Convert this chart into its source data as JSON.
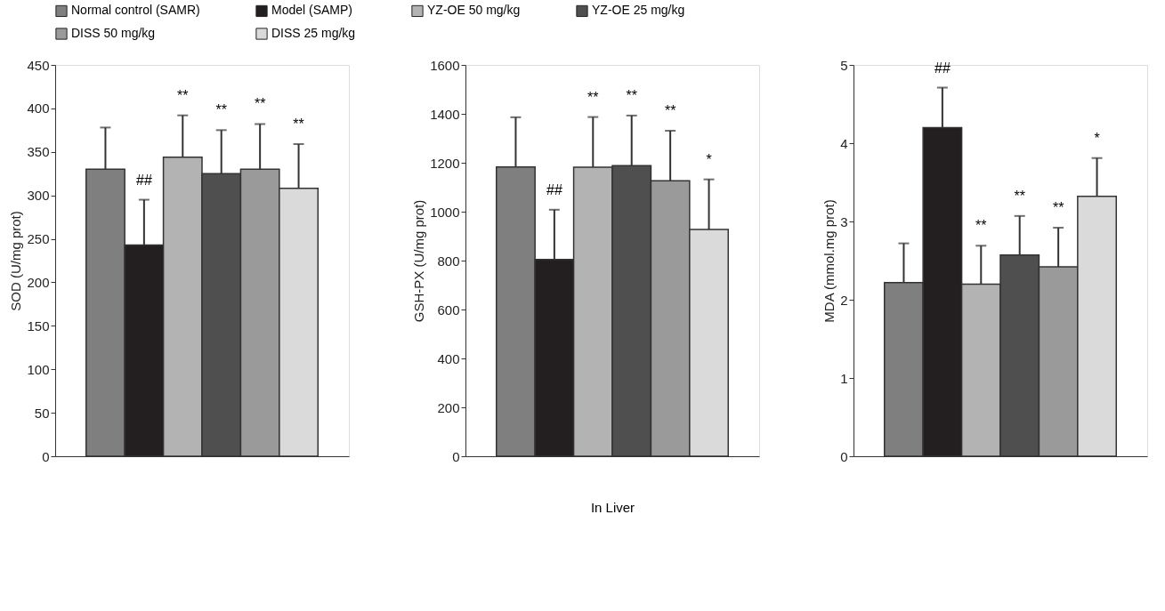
{
  "chart_data": [
    {
      "type": "bar",
      "ylabel": "SOD (U/mg prot)",
      "ylim": [
        0,
        450
      ],
      "yticks": [
        0,
        50,
        100,
        150,
        200,
        250,
        300,
        350,
        400,
        450
      ],
      "categories": [
        null
      ],
      "tick_labels": "y",
      "grid": false,
      "legend": "top",
      "series": [
        {
          "name": "Normal control (SAMR)",
          "color": "#7f7f7f",
          "values": [
            330
          ],
          "errors": [
            48
          ]
        },
        {
          "name": "Model (SAMP)",
          "color": "#231f20",
          "values": [
            243
          ],
          "errors": [
            52
          ]
        },
        {
          "name": "YZ-OE 50 mg/kg",
          "color": "#b3b3b3",
          "values": [
            344
          ],
          "errors": [
            48
          ]
        },
        {
          "name": "YZ-OE 25 mg/kg",
          "color": "#4f4f4f",
          "values": [
            325
          ],
          "errors": [
            50
          ]
        },
        {
          "name": "DISS 50 mg/kg",
          "color": "#9a9a9a",
          "values": [
            330
          ],
          "errors": [
            52
          ]
        },
        {
          "name": "DISS 25 mg/kg",
          "color": "#dadada",
          "values": [
            308
          ],
          "errors": [
            51
          ]
        }
      ],
      "annotations": [
        "##",
        "**",
        "**",
        "**",
        "**"
      ]
    },
    {
      "type": "bar",
      "xlabel": "In Liver",
      "ylabel": "GSH-PX (U/mg prot)",
      "ylim": [
        0,
        1600
      ],
      "yticks": [
        0,
        200,
        400,
        600,
        800,
        1000,
        1200,
        1400,
        1600
      ],
      "categories": [
        null
      ],
      "tick_labels": "y",
      "grid": false,
      "series": [
        {
          "name": "Normal control (SAMR)",
          "color": "#7f7f7f",
          "values": [
            1183
          ],
          "errors": [
            203
          ]
        },
        {
          "name": "Model (SAMP)",
          "color": "#231f20",
          "values": [
            805
          ],
          "errors": [
            203
          ]
        },
        {
          "name": "YZ-OE 50 mg/kg",
          "color": "#b3b3b3",
          "values": [
            1182
          ],
          "errors": [
            205
          ]
        },
        {
          "name": "YZ-OE 25 mg/kg",
          "color": "#4f4f4f",
          "values": [
            1188
          ],
          "errors": [
            205
          ]
        },
        {
          "name": "DISS 50 mg/kg",
          "color": "#9a9a9a",
          "values": [
            1126
          ],
          "errors": [
            205
          ]
        },
        {
          "name": "DISS 25 mg/kg",
          "color": "#dadada",
          "values": [
            927
          ],
          "errors": [
            205
          ]
        }
      ],
      "annotations": [
        "##",
        "**",
        "**",
        "**",
        "*"
      ]
    },
    {
      "type": "bar",
      "ylabel": "MDA (mmol.mg prot)",
      "ylim": [
        0,
        5
      ],
      "yticks": [
        0,
        1,
        2,
        3,
        4,
        5
      ],
      "categories": [
        null
      ],
      "tick_labels": "y",
      "grid": false,
      "series": [
        {
          "name": "Normal control (SAMR)",
          "color": "#7f7f7f",
          "values": [
            2.22
          ],
          "errors": [
            0.5
          ]
        },
        {
          "name": "Model (SAMP)",
          "color": "#231f20",
          "values": [
            4.2
          ],
          "errors": [
            0.51
          ]
        },
        {
          "name": "YZ-OE 50 mg/kg",
          "color": "#b3b3b3",
          "values": [
            2.2
          ],
          "errors": [
            0.49
          ]
        },
        {
          "name": "YZ-OE 25 mg/kg",
          "color": "#4f4f4f",
          "values": [
            2.57
          ],
          "errors": [
            0.5
          ]
        },
        {
          "name": "DISS 50 mg/kg",
          "color": "#9a9a9a",
          "values": [
            2.42
          ],
          "errors": [
            0.5
          ]
        },
        {
          "name": "DISS 25 mg/kg",
          "color": "#dadada",
          "values": [
            3.32
          ],
          "errors": [
            0.49
          ]
        }
      ],
      "annotations": [
        "##",
        "**",
        "**",
        "**",
        "*"
      ]
    }
  ]
}
